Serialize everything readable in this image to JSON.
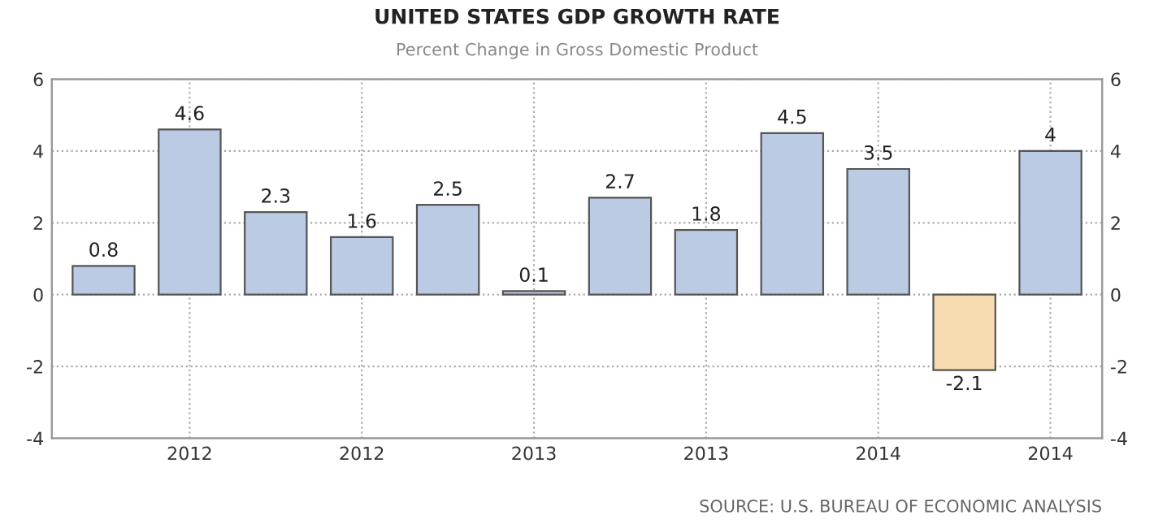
{
  "chart_data": {
    "type": "bar",
    "title": "UNITED STATES GDP GROWTH RATE",
    "subtitle": "Percent Change in Gross Domestic Product",
    "categories": [
      null,
      "2012",
      null,
      "2012",
      null,
      "2013",
      null,
      "2013",
      null,
      "2014",
      null,
      "2014"
    ],
    "values": [
      0.8,
      4.6,
      2.3,
      1.6,
      2.5,
      0.1,
      2.7,
      1.8,
      4.5,
      3.5,
      -2.1,
      4
    ],
    "colors": [
      "#bccbe4",
      "#bccbe4",
      "#bccbe4",
      "#bccbe4",
      "#bccbe4",
      "#bccbe4",
      "#bccbe4",
      "#bccbe4",
      "#bccbe4",
      "#bccbe4",
      "#f6dcb0",
      "#bccbe4"
    ],
    "data_labels": true,
    "ylim": [
      -4,
      6
    ],
    "yticks": [
      -4,
      -2,
      0,
      2,
      4,
      6
    ],
    "y2lim": [
      -4,
      6
    ],
    "y2ticks": [
      -4,
      -2,
      0,
      2,
      4,
      6
    ],
    "grid": true,
    "annotations": [
      "SOURCE: U.S. BUREAU OF ECONOMIC ANALYSIS"
    ]
  }
}
